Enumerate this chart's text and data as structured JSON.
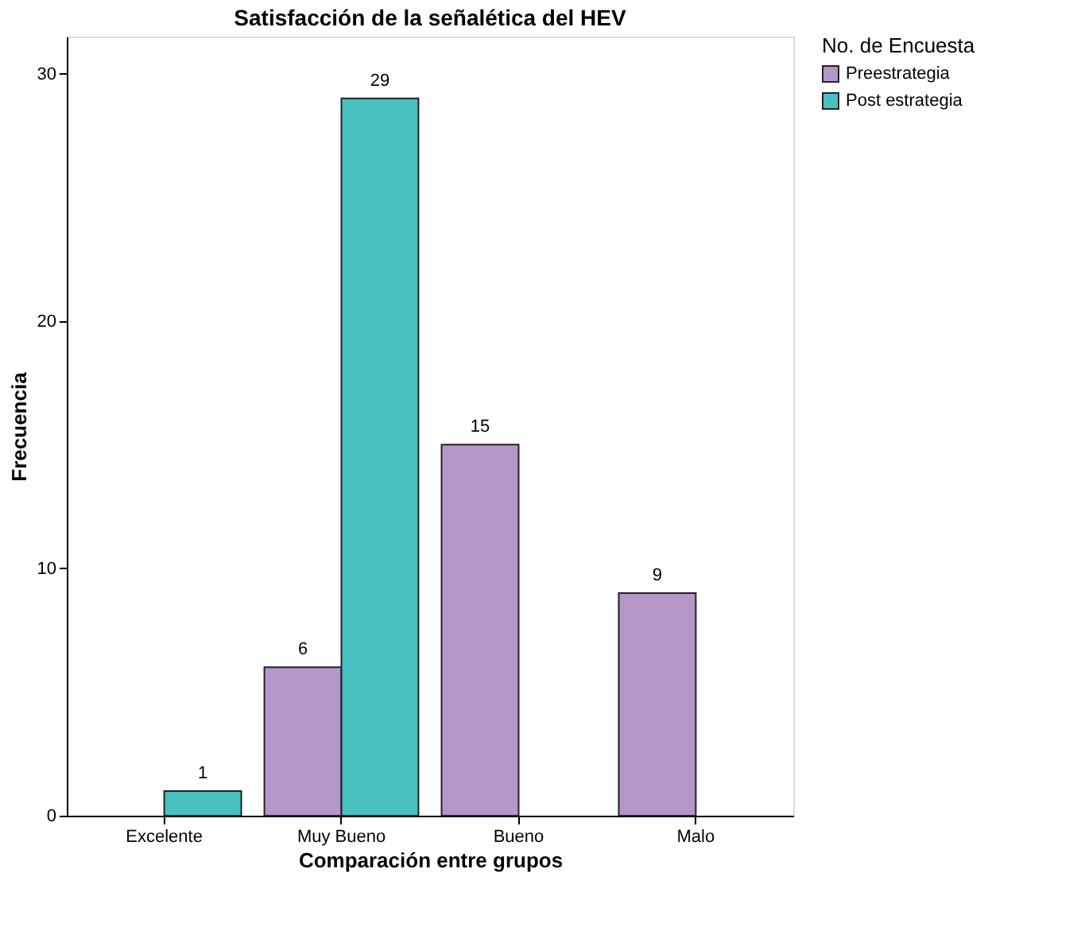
{
  "chart_data": {
    "type": "bar",
    "title": "Satisfacción de la señalética del HEV",
    "xlabel": "Comparación entre grupos",
    "ylabel": "Frecuencia",
    "legend_title": "No. de Encuesta",
    "categories": [
      "Excelente",
      "Muy Bueno",
      "Bueno",
      "Malo"
    ],
    "series": [
      {
        "name": "Preestrategia",
        "color": "#b596c8",
        "values": [
          null,
          6,
          15,
          9
        ]
      },
      {
        "name": "Post estrategia",
        "color": "#48c0c0",
        "values": [
          1,
          29,
          null,
          null
        ]
      }
    ],
    "ylim": [
      0,
      31.5
    ],
    "yticks": [
      0,
      10,
      20,
      30
    ],
    "grid": false,
    "legend": "top right",
    "data_labels": true
  }
}
